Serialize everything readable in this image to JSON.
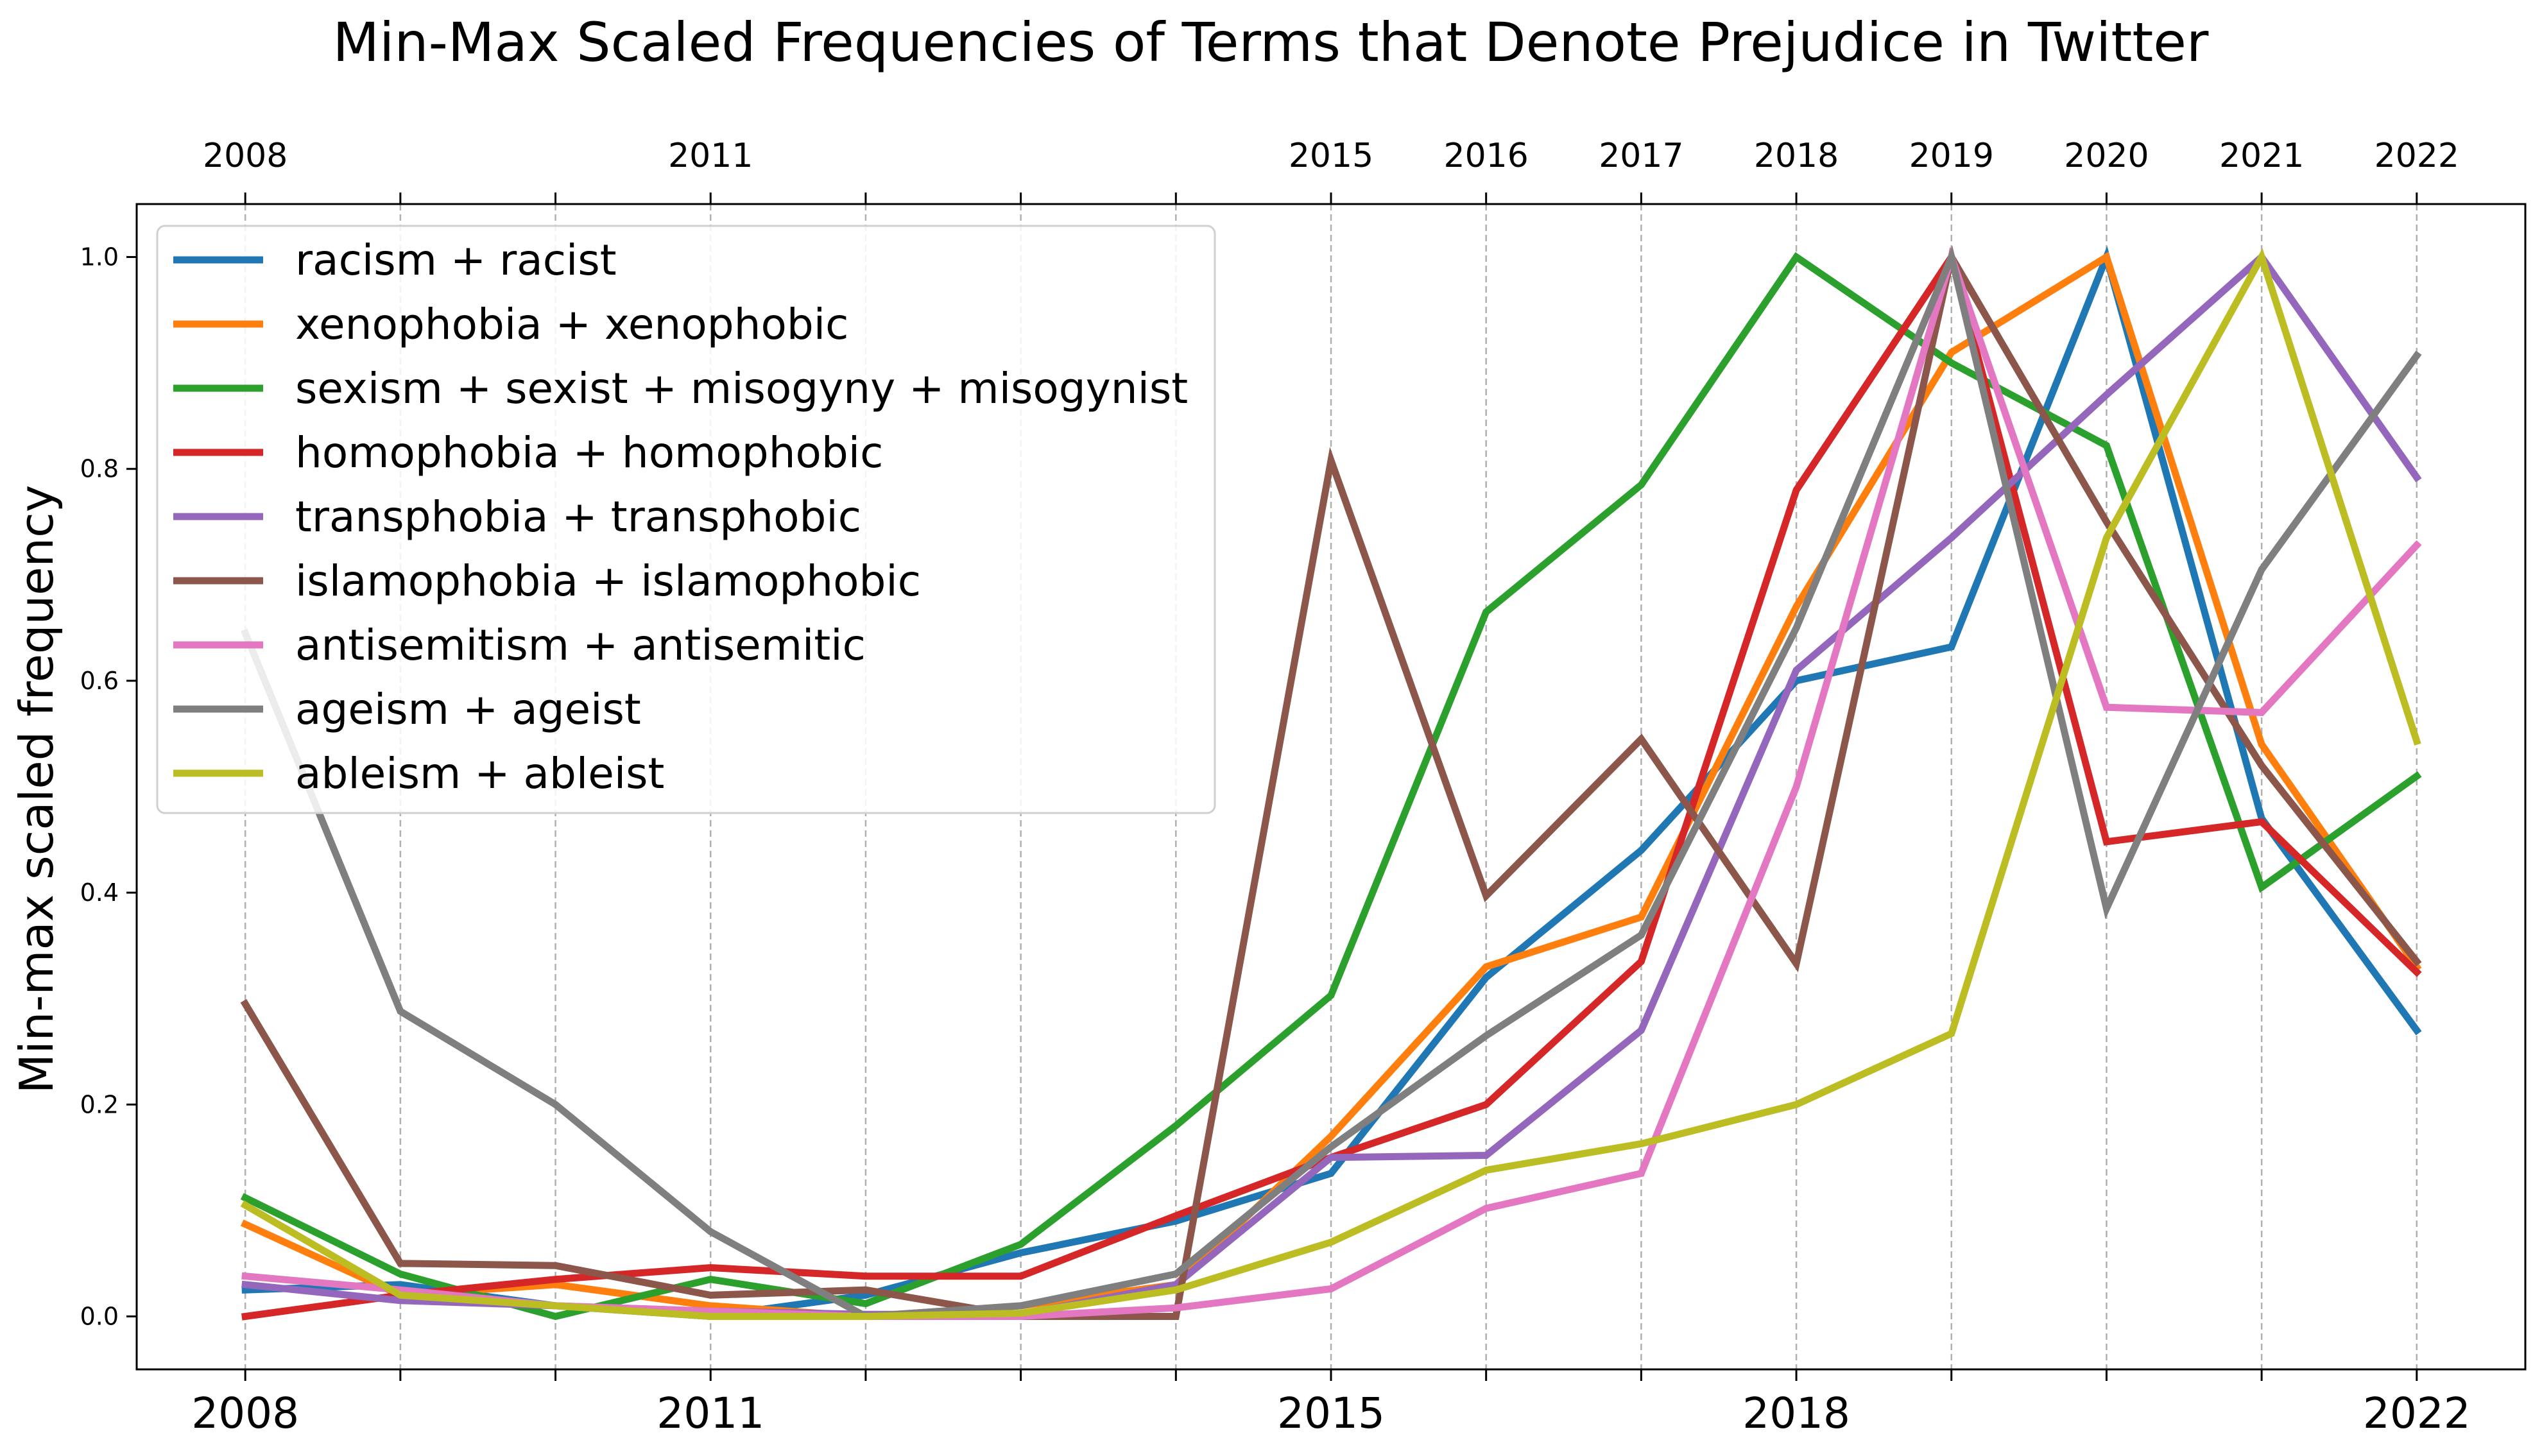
{
  "chart_data": {
    "type": "line",
    "title": "Min-Max Scaled Frequencies of Terms that Denote Prejudice in Twitter",
    "xlabel": "",
    "ylabel": "Min-max scaled frequency",
    "x": [
      2008,
      2009,
      2010,
      2011,
      2012,
      2013,
      2014,
      2015,
      2016,
      2017,
      2018,
      2019,
      2020,
      2021,
      2022
    ],
    "xlim": [
      2007.3,
      2022.7
    ],
    "ylim": [
      -0.05,
      1.05
    ],
    "yticks": [
      "0.0",
      "0.2",
      "0.4",
      "0.6",
      "0.8",
      "1.0"
    ],
    "top_ticks": [
      "2008",
      "2011",
      "2015",
      "2016",
      "2017",
      "2018",
      "2019",
      "2020",
      "2021",
      "2022"
    ],
    "bottom_ticks": [
      "2008",
      "2011",
      "2015",
      "2018",
      "2022"
    ],
    "grid": "vertical dashed at each year",
    "legend_position": "top-left",
    "series": [
      {
        "name": "racism + racist",
        "color": "#1f77b4",
        "values": [
          0.025,
          0.03,
          0.01,
          0.0,
          0.02,
          0.06,
          0.09,
          0.135,
          0.32,
          0.44,
          0.6,
          0.632,
          1.0,
          0.47,
          0.27
        ]
      },
      {
        "name": "xenophobia + xenophobic",
        "color": "#ff7f0e",
        "values": [
          0.087,
          0.02,
          0.03,
          0.01,
          0.0,
          0.01,
          0.03,
          0.17,
          0.33,
          0.377,
          0.67,
          0.91,
          1.0,
          0.54,
          0.33
        ]
      },
      {
        "name": "sexism + sexist + misogyny + misogynist",
        "color": "#2ca02c",
        "values": [
          0.112,
          0.04,
          0.0,
          0.035,
          0.012,
          0.068,
          0.18,
          0.303,
          0.665,
          0.785,
          1.0,
          0.9,
          0.822,
          0.405,
          0.51
        ]
      },
      {
        "name": "homophobia + homophobic",
        "color": "#d62728",
        "values": [
          0.0,
          0.02,
          0.035,
          0.046,
          0.038,
          0.038,
          0.095,
          0.15,
          0.2,
          0.335,
          0.78,
          1.0,
          0.448,
          0.467,
          0.325
        ]
      },
      {
        "name": "transphobia + transphobic",
        "color": "#9467bd",
        "values": [
          0.03,
          0.015,
          0.01,
          0.005,
          0.002,
          0.002,
          0.03,
          0.15,
          0.152,
          0.27,
          0.61,
          0.735,
          0.87,
          1.0,
          0.792
        ]
      },
      {
        "name": "islamophobia + islamophobic",
        "color": "#8c564b",
        "values": [
          0.295,
          0.05,
          0.048,
          0.02,
          0.025,
          0.0,
          0.0,
          0.808,
          0.397,
          0.545,
          0.333,
          1.0,
          0.75,
          0.52,
          0.335
        ]
      },
      {
        "name": "antisemitism + antisemitic",
        "color": "#e377c2",
        "values": [
          0.038,
          0.025,
          0.01,
          0.005,
          0.0,
          0.0,
          0.008,
          0.026,
          0.102,
          0.135,
          0.5,
          1.0,
          0.575,
          0.57,
          0.728
        ]
      },
      {
        "name": "ageism + ageist",
        "color": "#7f7f7f",
        "values": [
          0.645,
          0.288,
          0.2,
          0.08,
          0.0,
          0.01,
          0.04,
          0.16,
          0.265,
          0.36,
          0.65,
          1.0,
          0.385,
          0.705,
          0.907
        ]
      },
      {
        "name": "ableism + ableist",
        "color": "#bcbd22",
        "values": [
          0.105,
          0.02,
          0.01,
          0.0,
          0.0,
          0.003,
          0.025,
          0.07,
          0.138,
          0.163,
          0.2,
          0.267,
          0.735,
          1.0,
          0.543
        ]
      }
    ]
  }
}
